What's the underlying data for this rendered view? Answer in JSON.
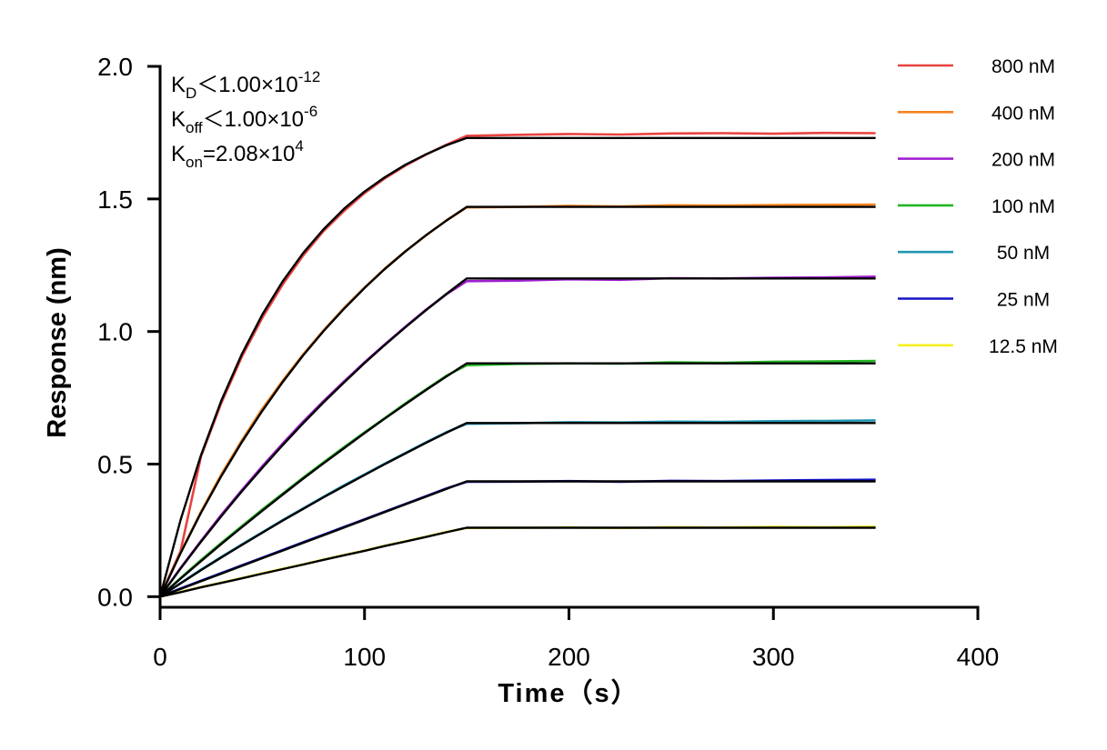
{
  "chart_data": {
    "type": "line",
    "x_label": "Time（s）",
    "y_label": "Response (nm)",
    "annotations": [
      {
        "main": "K",
        "sub": "D",
        "text": "＜1.00×10",
        "sup": "-12"
      },
      {
        "main": "K",
        "sub": "off",
        "text": "＜1.00×10",
        "sup": "-6"
      },
      {
        "main": "K",
        "sub": "on",
        "text": "=2.08×10",
        "sup": "4"
      }
    ],
    "x": [
      0,
      10,
      20,
      30,
      40,
      50,
      60,
      70,
      80,
      90,
      100,
      110,
      120,
      130,
      140,
      150,
      175,
      200,
      225,
      250,
      275,
      300,
      325,
      350
    ],
    "series": [
      {
        "name": "800 nM",
        "color": "#e8433f",
        "values": [
          0,
          0.172,
          0.528,
          0.731,
          0.905,
          1.052,
          1.178,
          1.287,
          1.379,
          1.455,
          1.522,
          1.578,
          1.626,
          1.667,
          1.704,
          1.738,
          1.742,
          1.745,
          1.743,
          1.747,
          1.748,
          1.746,
          1.749,
          1.748
        ]
      },
      {
        "name": "400 nM",
        "color": "#f5831f",
        "values": [
          0,
          0.166,
          0.32,
          0.462,
          0.59,
          0.709,
          0.815,
          0.914,
          1.005,
          1.089,
          1.166,
          1.238,
          1.303,
          1.362,
          1.419,
          1.468,
          1.47,
          1.474,
          1.472,
          1.476,
          1.475,
          1.477,
          1.478,
          1.479
        ]
      },
      {
        "name": "200 nM",
        "color": "#a020d0",
        "values": [
          0,
          0.108,
          0.21,
          0.309,
          0.402,
          0.492,
          0.578,
          0.66,
          0.738,
          0.812,
          0.884,
          0.952,
          1.018,
          1.082,
          1.14,
          1.19,
          1.192,
          1.197,
          1.195,
          1.201,
          1.2,
          1.203,
          1.204,
          1.207
        ]
      },
      {
        "name": "100 nM",
        "color": "#22b522",
        "values": [
          0,
          0.07,
          0.138,
          0.203,
          0.266,
          0.329,
          0.389,
          0.449,
          0.507,
          0.564,
          0.62,
          0.674,
          0.729,
          0.781,
          0.833,
          0.873,
          0.878,
          0.88,
          0.879,
          0.884,
          0.882,
          0.886,
          0.887,
          0.889
        ]
      },
      {
        "name": "50 nM",
        "color": "#2196b4",
        "values": [
          0,
          0.051,
          0.102,
          0.15,
          0.197,
          0.243,
          0.289,
          0.333,
          0.377,
          0.42,
          0.461,
          0.502,
          0.542,
          0.582,
          0.62,
          0.652,
          0.654,
          0.658,
          0.657,
          0.66,
          0.659,
          0.662,
          0.663,
          0.665
        ]
      },
      {
        "name": "25 nM",
        "color": "#1414c8",
        "values": [
          0,
          0.031,
          0.06,
          0.089,
          0.118,
          0.147,
          0.176,
          0.205,
          0.234,
          0.263,
          0.292,
          0.321,
          0.35,
          0.379,
          0.408,
          0.433,
          0.434,
          0.436,
          0.433,
          0.437,
          0.436,
          0.438,
          0.44,
          0.441
        ]
      },
      {
        "name": "12.5 nM",
        "color": "#f5f01e",
        "values": [
          0,
          0.018,
          0.036,
          0.053,
          0.07,
          0.088,
          0.105,
          0.122,
          0.14,
          0.157,
          0.174,
          0.192,
          0.209,
          0.226,
          0.244,
          0.259,
          0.26,
          0.261,
          0.259,
          0.262,
          0.261,
          0.263,
          0.262,
          0.264
        ]
      }
    ],
    "fits": [
      {
        "color": "#000000",
        "values": [
          0,
          0.289,
          0.533,
          0.74,
          0.915,
          1.064,
          1.19,
          1.296,
          1.386,
          1.463,
          1.528,
          1.582,
          1.629,
          1.668,
          1.702,
          1.73,
          1.73,
          1.73,
          1.73,
          1.73,
          1.73,
          1.73,
          1.73,
          1.73
        ]
      },
      {
        "color": "#000000",
        "values": [
          0,
          0.164,
          0.316,
          0.455,
          0.583,
          0.701,
          0.81,
          0.91,
          1.002,
          1.086,
          1.164,
          1.236,
          1.302,
          1.363,
          1.418,
          1.47,
          1.47,
          1.47,
          1.47,
          1.47,
          1.47,
          1.47,
          1.47,
          1.47
        ]
      },
      {
        "color": "#000000",
        "values": [
          0,
          0.106,
          0.207,
          0.304,
          0.397,
          0.486,
          0.572,
          0.654,
          0.733,
          0.808,
          0.881,
          0.95,
          1.016,
          1.08,
          1.141,
          1.2,
          1.2,
          1.2,
          1.2,
          1.2,
          1.2,
          1.2,
          1.2,
          1.2
        ]
      },
      {
        "color": "#000000",
        "values": [
          0,
          0.068,
          0.134,
          0.199,
          0.262,
          0.324,
          0.385,
          0.445,
          0.503,
          0.56,
          0.617,
          0.672,
          0.726,
          0.779,
          0.83,
          0.88,
          0.88,
          0.88,
          0.88,
          0.88,
          0.88,
          0.88,
          0.88,
          0.88
        ]
      },
      {
        "color": "#000000",
        "values": [
          0,
          0.05,
          0.1,
          0.148,
          0.195,
          0.241,
          0.287,
          0.331,
          0.375,
          0.417,
          0.459,
          0.5,
          0.54,
          0.58,
          0.618,
          0.655,
          0.655,
          0.655,
          0.655,
          0.655,
          0.655,
          0.655,
          0.655,
          0.655
        ]
      },
      {
        "color": "#000000",
        "values": [
          0,
          0.029,
          0.058,
          0.087,
          0.116,
          0.145,
          0.174,
          0.203,
          0.232,
          0.261,
          0.29,
          0.319,
          0.348,
          0.377,
          0.406,
          0.435,
          0.435,
          0.435,
          0.435,
          0.435,
          0.435,
          0.435,
          0.435,
          0.435
        ]
      },
      {
        "color": "#000000",
        "values": [
          0,
          0.017,
          0.035,
          0.052,
          0.069,
          0.087,
          0.104,
          0.121,
          0.139,
          0.156,
          0.173,
          0.191,
          0.208,
          0.225,
          0.243,
          0.26,
          0.26,
          0.26,
          0.26,
          0.26,
          0.26,
          0.26,
          0.26,
          0.26
        ]
      }
    ],
    "xlim": [
      0,
      400
    ],
    "xticks": [
      0,
      100,
      200,
      300,
      400
    ],
    "ylim": [
      -0.04,
      2.0
    ],
    "yticks": [
      {
        "value": 0,
        "label": "0.0"
      },
      {
        "value": 0.5,
        "label": "0.5"
      },
      {
        "value": 1,
        "label": "1.0"
      },
      {
        "value": 1.5,
        "label": "1.5"
      },
      {
        "value": 2,
        "label": "2.0"
      }
    ],
    "legend": "right"
  }
}
